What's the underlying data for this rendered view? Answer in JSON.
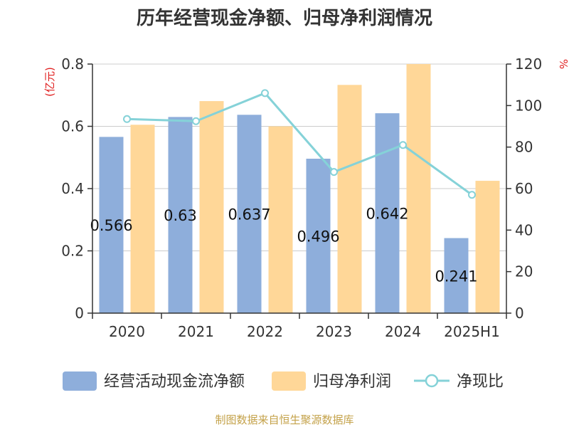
{
  "chart_data": {
    "title": "历年经营现金净额、归母净利润情况",
    "categories": [
      "2020",
      "2021",
      "2022",
      "2023",
      "2024",
      "2025H1"
    ],
    "y_left": {
      "unit": "(亿元)",
      "range": [
        0,
        0.8
      ],
      "ticks": [
        "0",
        "0.2",
        "0.4",
        "0.6",
        "0.8"
      ]
    },
    "y_right": {
      "unit": "%",
      "range": [
        0,
        120
      ],
      "ticks": [
        "0",
        "20",
        "40",
        "60",
        "80",
        "100",
        "120"
      ]
    },
    "series": [
      {
        "name": "经营活动现金流净额",
        "type": "bar",
        "axis": "left",
        "color": "#8eaedb",
        "values": [
          0.566,
          0.63,
          0.637,
          0.496,
          0.642,
          0.241
        ],
        "labels": [
          "0.566",
          "0.63",
          "0.637",
          "0.496",
          "0.642",
          "0.241"
        ]
      },
      {
        "name": "归母净利润",
        "type": "bar",
        "axis": "left",
        "color": "#ffd798",
        "values": [
          0.605,
          0.681,
          0.6,
          0.733,
          0.8,
          0.425
        ]
      },
      {
        "name": "净现比",
        "type": "line",
        "axis": "right",
        "color": "#85d2d8",
        "values": [
          93.5,
          92.5,
          106,
          68,
          81,
          57
        ]
      }
    ],
    "grid": true,
    "legend_position": "bottom"
  },
  "footer": {
    "source": "制图数据来自恒生聚源数据库"
  }
}
